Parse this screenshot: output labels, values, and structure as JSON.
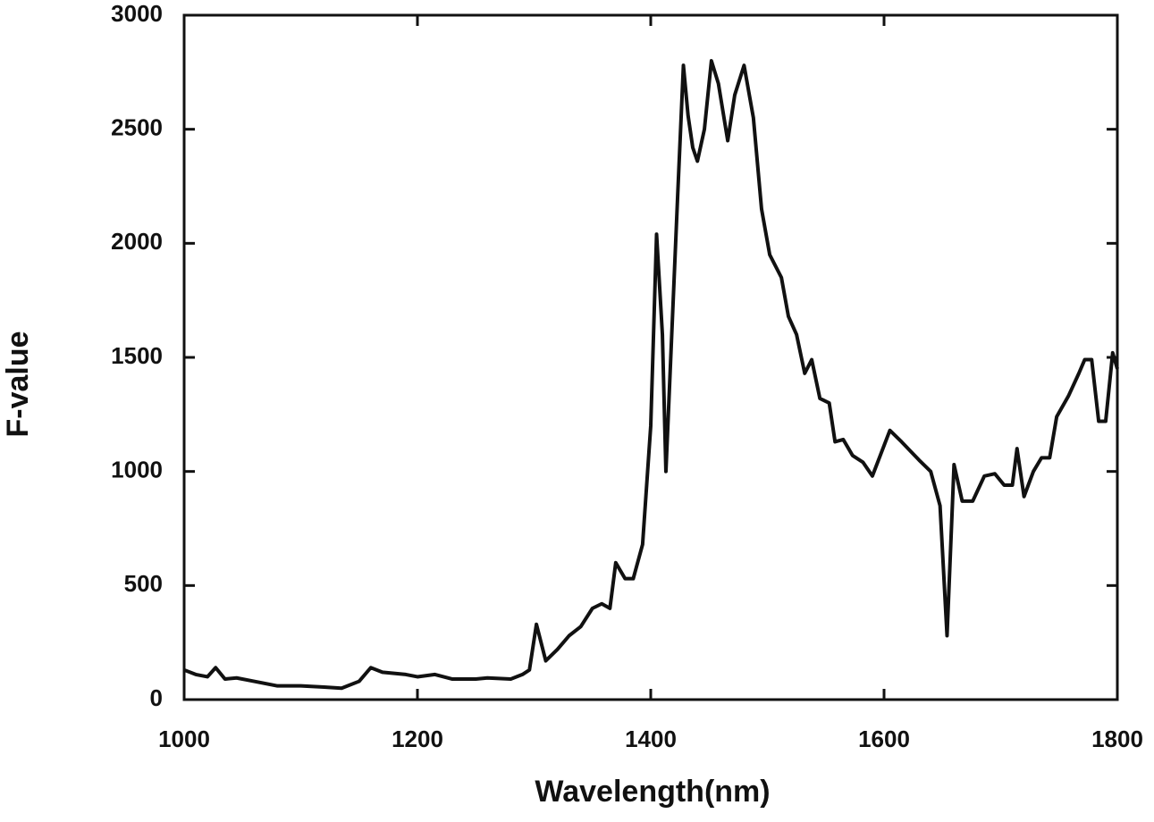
{
  "chart_data": {
    "type": "line",
    "xlabel": "Wavelength(nm)",
    "ylabel": "F-value",
    "x": [
      1000,
      1010,
      1020,
      1027,
      1035,
      1045,
      1060,
      1080,
      1100,
      1120,
      1135,
      1150,
      1160,
      1170,
      1190,
      1200,
      1215,
      1230,
      1250,
      1260,
      1280,
      1290,
      1296,
      1302,
      1310,
      1320,
      1330,
      1340,
      1350,
      1358,
      1365,
      1370,
      1378,
      1385,
      1393,
      1400,
      1405,
      1410,
      1413,
      1418,
      1423,
      1428,
      1432,
      1436,
      1440,
      1446,
      1452,
      1458,
      1466,
      1472,
      1480,
      1488,
      1495,
      1502,
      1512,
      1518,
      1525,
      1532,
      1538,
      1545,
      1553,
      1558,
      1565,
      1573,
      1582,
      1590,
      1605,
      1615,
      1630,
      1640,
      1648,
      1654,
      1660,
      1667,
      1676,
      1686,
      1695,
      1703,
      1710,
      1714,
      1720,
      1728,
      1735,
      1742,
      1748,
      1758,
      1767,
      1772,
      1778,
      1784,
      1790,
      1796,
      1800
    ],
    "series": [
      {
        "name": "F-value",
        "color": "#111111",
        "values": [
          130,
          110,
          100,
          140,
          90,
          95,
          80,
          60,
          60,
          55,
          50,
          80,
          140,
          120,
          110,
          100,
          110,
          90,
          90,
          95,
          90,
          110,
          130,
          330,
          170,
          220,
          280,
          320,
          400,
          420,
          400,
          600,
          530,
          530,
          680,
          1200,
          2040,
          1600,
          1000,
          1600,
          2200,
          2780,
          2560,
          2420,
          2360,
          2500,
          2800,
          2700,
          2450,
          2650,
          2780,
          2550,
          2150,
          1950,
          1850,
          1680,
          1600,
          1430,
          1490,
          1320,
          1300,
          1130,
          1140,
          1070,
          1040,
          980,
          1180,
          1130,
          1050,
          1000,
          850,
          280,
          1030,
          870,
          870,
          980,
          990,
          940,
          940,
          1100,
          890,
          1000,
          1060,
          1060,
          1240,
          1330,
          1430,
          1490,
          1490,
          1220,
          1220,
          1520,
          1450
        ]
      }
    ],
    "xlim": [
      1000,
      1800
    ],
    "xticks": [
      1000,
      1200,
      1400,
      1600,
      1800
    ],
    "ylim": [
      0,
      3000
    ],
    "yticks": [
      0,
      500,
      1000,
      1500,
      2000,
      2500,
      3000
    ]
  }
}
